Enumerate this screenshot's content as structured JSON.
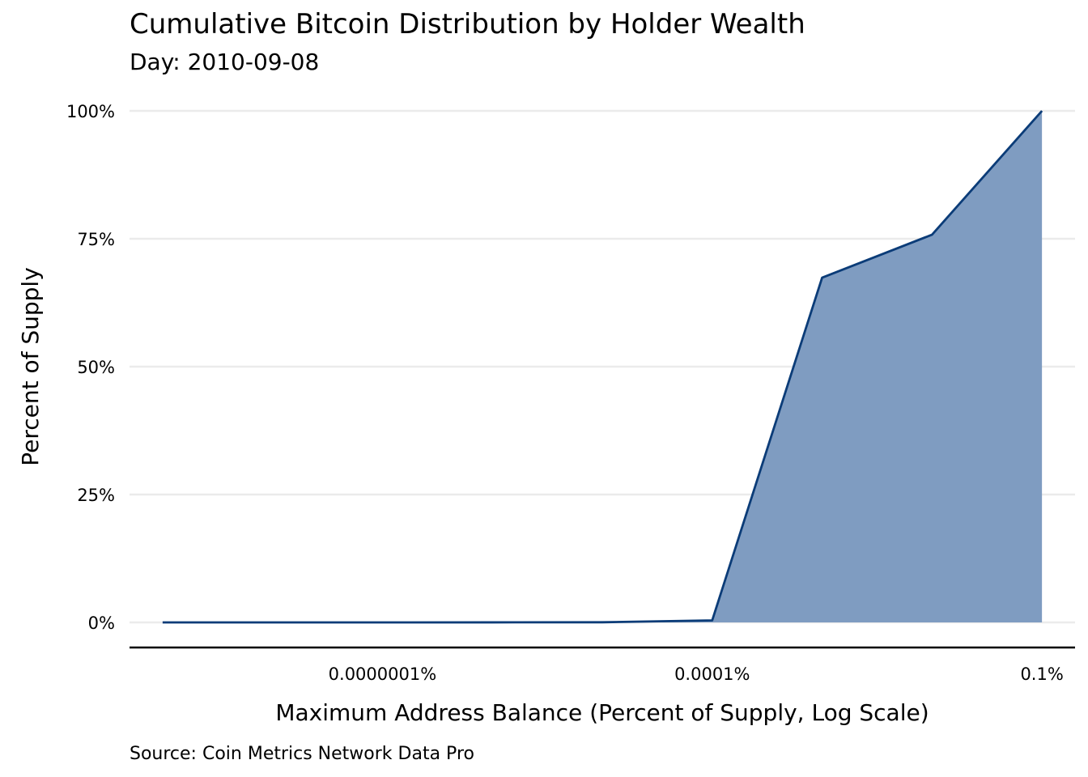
{
  "chart_data": {
    "type": "area",
    "title": "Cumulative Bitcoin Distribution by Holder Wealth",
    "subtitle": "Day: 2010-09-08",
    "xlabel": "Maximum Address Balance (Percent of Supply, Log Scale)",
    "ylabel": "Percent of Supply",
    "caption": "Source: Coin Metrics Network Data Pro",
    "x_scale": "log10",
    "x_unit": "percent of supply",
    "y_unit": "percent of supply",
    "xlim": [
      5e-10,
      0.2
    ],
    "ylim": [
      0,
      100
    ],
    "x_ticks": [
      {
        "value": 1e-07,
        "label": "0.0000001%"
      },
      {
        "value": 0.0001,
        "label": "0.0001%"
      },
      {
        "value": 0.1,
        "label": "0.1%"
      }
    ],
    "y_ticks": [
      {
        "value": 0,
        "label": "0%"
      },
      {
        "value": 25,
        "label": "25%"
      },
      {
        "value": 50,
        "label": "50%"
      },
      {
        "value": 75,
        "label": "75%"
      },
      {
        "value": 100,
        "label": "100%"
      }
    ],
    "grid": "horizontal",
    "legend": "none",
    "fill_color": "#7f9cc1",
    "line_color": "#0b3c78",
    "series": [
      {
        "x": [
          1e-09,
          1e-08,
          1e-07,
          1e-06,
          1e-05,
          0.0001,
          0.001,
          0.01,
          0.1
        ],
        "values": [
          0,
          0,
          0,
          0.01,
          0.03,
          0.4,
          67.4,
          75.8,
          100
        ]
      }
    ]
  }
}
